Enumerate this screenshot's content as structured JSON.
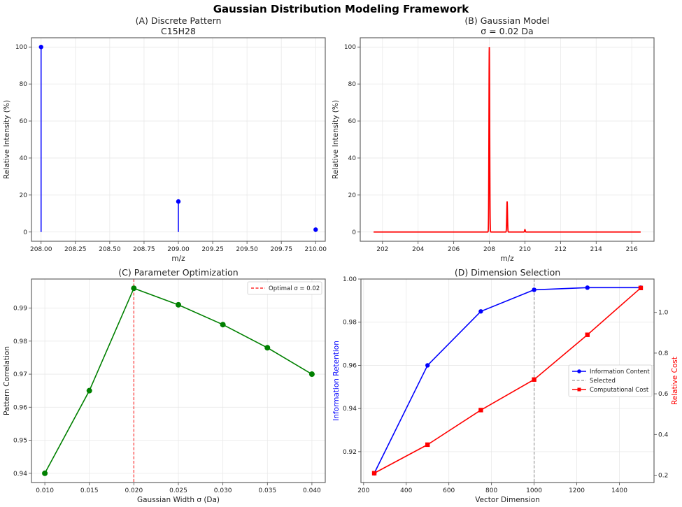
{
  "figure": {
    "title": "Gaussian Distribution Modeling Framework"
  },
  "chart_data": [
    {
      "id": "A",
      "type": "stem",
      "title": "(A) Discrete Pattern",
      "subtitle": "C15H28",
      "xlabel": "m/z",
      "ylabel": "Relative Intensity (%)",
      "x": [
        208.0,
        209.0,
        210.0
      ],
      "values": [
        100,
        16.5,
        1.3
      ],
      "xlim": [
        207.93,
        210.07
      ],
      "ylim": [
        -5,
        105
      ],
      "xticks": [
        "208.00",
        "208.25",
        "208.50",
        "208.75",
        "209.00",
        "209.25",
        "209.50",
        "209.75",
        "210.00"
      ],
      "yticks": [
        "0",
        "20",
        "40",
        "60",
        "80",
        "100"
      ],
      "color": "#0000ff",
      "grid": true
    },
    {
      "id": "B",
      "type": "line",
      "title": "(B) Gaussian Model",
      "subtitle": "σ = 0.02 Da",
      "xlabel": "m/z",
      "ylabel": "Relative Intensity (%)",
      "x_range": [
        201.5,
        216.5
      ],
      "peaks": [
        {
          "center": 208.0,
          "height": 100
        },
        {
          "center": 209.0,
          "height": 16.5
        },
        {
          "center": 210.0,
          "height": 1.3
        }
      ],
      "sigma": 0.02,
      "xlim": [
        200.75,
        217.25
      ],
      "ylim": [
        -5,
        105
      ],
      "xticks": [
        "202",
        "204",
        "206",
        "208",
        "210",
        "212",
        "214",
        "216"
      ],
      "yticks": [
        "0",
        "20",
        "40",
        "60",
        "80",
        "100"
      ],
      "color": "#ff0000",
      "grid": true
    },
    {
      "id": "C",
      "type": "line",
      "title": "(C) Parameter Optimization",
      "xlabel": "Gaussian Width σ (Da)",
      "ylabel": "Pattern Correlation",
      "x": [
        0.01,
        0.015,
        0.02,
        0.025,
        0.03,
        0.035,
        0.04
      ],
      "values": [
        0.94,
        0.965,
        0.996,
        0.991,
        0.985,
        0.978,
        0.97
      ],
      "xlim": [
        0.0085,
        0.0415
      ],
      "ylim": [
        0.9372,
        0.9988
      ],
      "xticks": [
        "0.010",
        "0.015",
        "0.020",
        "0.025",
        "0.030",
        "0.035",
        "0.040"
      ],
      "yticks": [
        "0.94",
        "0.95",
        "0.96",
        "0.97",
        "0.98",
        "0.99"
      ],
      "color": "#008000",
      "vline": {
        "x": 0.02,
        "color": "#ff0000",
        "label": "Optimal σ = 0.02"
      },
      "legend": {
        "position": "upper right",
        "entries": [
          "Optimal σ = 0.02"
        ]
      },
      "grid": true
    },
    {
      "id": "D",
      "type": "line",
      "title": "(D) Dimension Selection",
      "xlabel": "Vector Dimension",
      "ylabel": "Information Retention",
      "ylabel_right": "Relative Cost",
      "x": [
        250,
        500,
        750,
        1000,
        1250,
        1500
      ],
      "series": [
        {
          "name": "Information Content",
          "axis": "left",
          "values": [
            0.91,
            0.96,
            0.985,
            0.995,
            0.996,
            0.996
          ],
          "color": "#0000ff",
          "marker": "circle"
        },
        {
          "name": "Computational Cost",
          "axis": "right",
          "values": [
            0.21,
            0.35,
            0.52,
            0.67,
            0.89,
            1.12
          ],
          "color": "#ff0000",
          "marker": "square"
        }
      ],
      "vline": {
        "x": 1000,
        "color": "#999999",
        "label": "Selected"
      },
      "xlim": [
        187.5,
        1562.5
      ],
      "ylim": [
        0.9057,
        1.0
      ],
      "ylim_right": [
        0.164,
        1.164
      ],
      "xticks": [
        "200",
        "400",
        "600",
        "800",
        "1000",
        "1200",
        "1400"
      ],
      "yticks": [
        "0.92",
        "0.94",
        "0.96",
        "0.98",
        "1.00"
      ],
      "yticks_right": [
        "0.2",
        "0.4",
        "0.6",
        "0.8",
        "1.0"
      ],
      "legend": {
        "position": "center right",
        "entries": [
          "Information Content",
          "Selected",
          "Computational Cost"
        ]
      },
      "grid": true
    }
  ]
}
